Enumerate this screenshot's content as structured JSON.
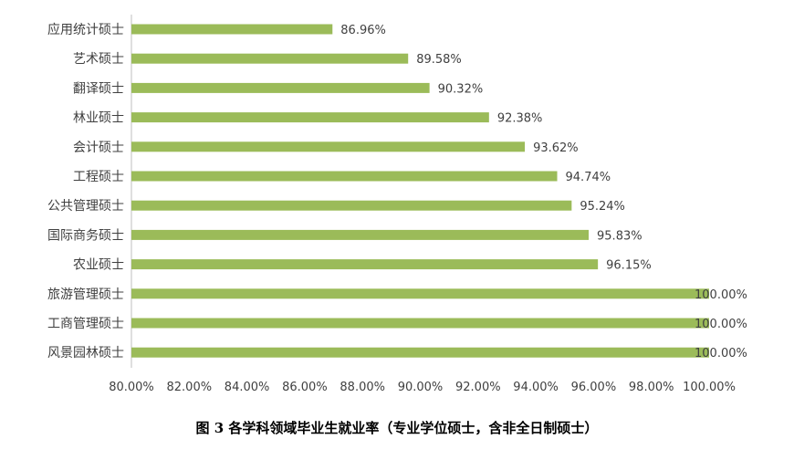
{
  "chart_data": {
    "type": "bar",
    "orientation": "horizontal",
    "categories": [
      "应用统计硕士",
      "艺术硕士",
      "翻译硕士",
      "林业硕士",
      "会计硕士",
      "工程硕士",
      "公共管理硕士",
      "国际商务硕士",
      "农业硕士",
      "旅游管理硕士",
      "工商管理硕士",
      "风景园林硕士"
    ],
    "values": [
      86.96,
      89.58,
      90.32,
      92.38,
      93.62,
      94.74,
      95.24,
      95.83,
      96.15,
      100.0,
      100.0,
      100.0
    ],
    "data_labels": [
      "86.96%",
      "89.58%",
      "90.32%",
      "92.38%",
      "93.62%",
      "94.74%",
      "95.24%",
      "95.83%",
      "96.15%",
      "100.00%",
      "100.00%",
      "100.00%"
    ],
    "xlim": [
      80,
      100
    ],
    "x_ticks": [
      80,
      82,
      84,
      86,
      88,
      90,
      92,
      94,
      96,
      98,
      100
    ],
    "x_tick_labels": [
      "80.00%",
      "82.00%",
      "84.00%",
      "86.00%",
      "88.00%",
      "90.00%",
      "92.00%",
      "94.00%",
      "96.00%",
      "98.00%",
      "100.00%"
    ],
    "xlabel": "",
    "ylabel": "",
    "grid": false,
    "bar_color": "#9BBB59",
    "caption": "图 3 各学科领域毕业生就业率（专业学位硕士，含非全日制硕士）"
  }
}
